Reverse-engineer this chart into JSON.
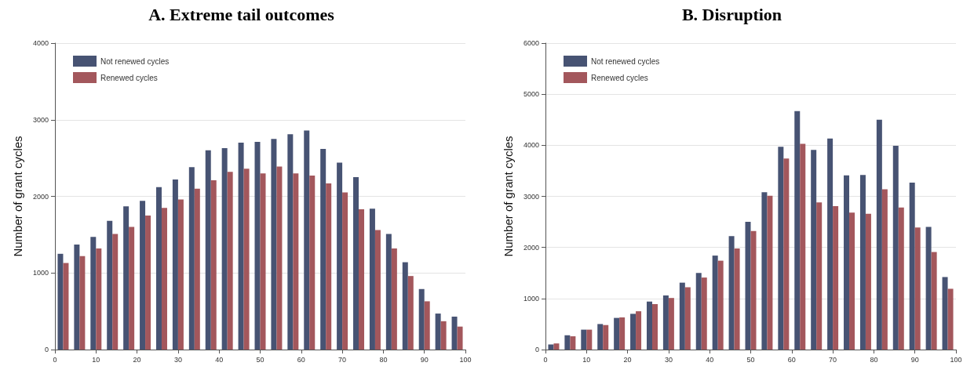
{
  "chart_data": [
    {
      "type": "bar",
      "title": "A. Extreme tail outcomes",
      "ylabel": "Number of grant cycles",
      "x": [
        2,
        6,
        10,
        14,
        18,
        22,
        26,
        30,
        34,
        38,
        42,
        46,
        50,
        54,
        58,
        62,
        66,
        70,
        74,
        78,
        82,
        86,
        90,
        94,
        98
      ],
      "series": [
        {
          "name": "Not renewed cycles",
          "color": "#475373",
          "values": [
            1250,
            1370,
            1470,
            1680,
            1870,
            1940,
            2120,
            2220,
            2380,
            2600,
            2630,
            2700,
            2710,
            2750,
            2810,
            2860,
            2620,
            2440,
            2250,
            1840,
            1510,
            1140,
            790,
            470,
            430
          ]
        },
        {
          "name": "Renewed cycles",
          "color": "#a3575c",
          "values": [
            1130,
            1220,
            1320,
            1510,
            1600,
            1750,
            1850,
            1960,
            2100,
            2210,
            2320,
            2360,
            2300,
            2390,
            2300,
            2270,
            2170,
            2050,
            1830,
            1560,
            1320,
            960,
            630,
            370,
            300
          ]
        }
      ],
      "xlim": [
        0,
        100
      ],
      "xticks": [
        0,
        10,
        20,
        30,
        40,
        50,
        60,
        70,
        80,
        90,
        100
      ],
      "ylim": [
        0,
        4000
      ],
      "yticks": [
        0,
        1000,
        2000,
        3000,
        4000
      ],
      "grid": "y",
      "legend": "top left"
    },
    {
      "type": "bar",
      "title": "B. Disruption",
      "ylabel": "Number of grant cycles",
      "x": [
        2,
        6,
        10,
        14,
        18,
        22,
        26,
        30,
        34,
        38,
        42,
        46,
        50,
        54,
        58,
        62,
        66,
        70,
        74,
        78,
        82,
        86,
        90,
        94,
        98
      ],
      "series": [
        {
          "name": "Not renewed cycles",
          "color": "#475373",
          "values": [
            100,
            280,
            390,
            500,
            620,
            700,
            940,
            1060,
            1310,
            1500,
            1840,
            2220,
            2500,
            3080,
            3970,
            4670,
            3910,
            4130,
            3410,
            3420,
            4500,
            3990,
            3270,
            2400,
            1420
          ]
        },
        {
          "name": "Renewed cycles",
          "color": "#a3575c",
          "values": [
            120,
            260,
            390,
            480,
            630,
            750,
            890,
            1010,
            1220,
            1410,
            1740,
            1980,
            2320,
            3010,
            3740,
            4030,
            2880,
            2810,
            2680,
            2660,
            3140,
            2780,
            2390,
            1910,
            1190
          ]
        }
      ],
      "xlim": [
        0,
        100
      ],
      "xticks": [
        0,
        10,
        20,
        30,
        40,
        50,
        60,
        70,
        80,
        90,
        100
      ],
      "ylim": [
        0,
        6000
      ],
      "yticks": [
        0,
        1000,
        2000,
        3000,
        4000,
        5000,
        6000
      ],
      "grid": "y",
      "legend": "top left"
    }
  ]
}
